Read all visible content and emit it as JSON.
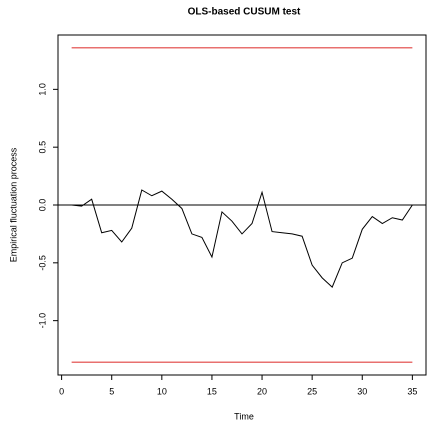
{
  "chart_data": {
    "type": "line",
    "title": "OLS-based CUSUM test",
    "x_label": "Time",
    "y_label": "Empirical fluctuation process",
    "x": [
      1,
      2,
      3,
      4,
      5,
      6,
      7,
      8,
      9,
      10,
      11,
      12,
      13,
      14,
      15,
      16,
      17,
      18,
      19,
      20,
      21,
      22,
      23,
      24,
      25,
      26,
      27,
      28,
      29,
      30,
      31,
      32,
      33,
      34,
      35
    ],
    "series": [
      {
        "color": "#000000",
        "values": [
          0.0,
          -0.01,
          0.05,
          -0.24,
          -0.22,
          -0.32,
          -0.2,
          0.13,
          0.08,
          0.12,
          0.05,
          -0.03,
          -0.25,
          -0.28,
          -0.45,
          -0.06,
          -0.14,
          -0.25,
          -0.16,
          0.11,
          -0.23,
          -0.24,
          -0.25,
          -0.27,
          -0.52,
          -0.63,
          -0.71,
          -0.5,
          -0.46,
          -0.21,
          -0.1,
          -0.16,
          -0.11,
          -0.13,
          0.0
        ]
      }
    ],
    "boundaries": [
      1.36,
      -1.36
    ],
    "boundary_color": "#e8706f",
    "reference_line": 0,
    "xlim": [
      -0.36,
      36.36
    ],
    "xticks": [
      0,
      5,
      10,
      15,
      20,
      25,
      30,
      35
    ],
    "ylim": [
      -1.47,
      1.47
    ],
    "yticks": [
      {
        "value": -1,
        "label": "-1.0"
      },
      {
        "value": -0.5,
        "label": "-0.5"
      },
      {
        "value": 0,
        "label": "0.0"
      },
      {
        "value": 0.5,
        "label": "0.5"
      },
      {
        "value": 1,
        "label": "1.0"
      }
    ]
  }
}
